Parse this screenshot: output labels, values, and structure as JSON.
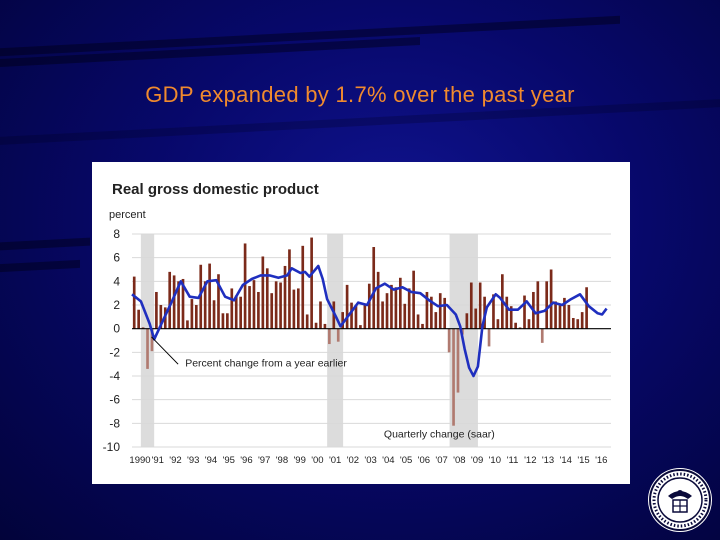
{
  "slide": {
    "title": "GDP expanded by 1.7% over the past year"
  },
  "colors": {
    "bar": "#7b2a1a",
    "bar_negative": "#b07a70",
    "line": "#1f2fbf",
    "recession": "#dcdcdc",
    "title": "#f08a2e"
  },
  "seal": {
    "icon": "federal-reserve-seal-icon"
  },
  "chart_data": {
    "type": "bar",
    "title": "Real gross domestic product",
    "ylabel": "percent",
    "ylim": [
      -10,
      8
    ],
    "yticks": [
      8,
      6,
      4,
      2,
      0,
      -2,
      -4,
      -6,
      -8,
      -10
    ],
    "xlim": [
      1990,
      2017
    ],
    "xtick_labels": [
      "1990",
      "'91",
      "'92",
      "'93",
      "'94",
      "'95",
      "'96",
      "'97",
      "'98",
      "'99",
      "'00",
      "'01",
      "'02",
      "'03",
      "'04",
      "'05",
      "'06",
      "'07",
      "'08",
      "'09",
      "'10",
      "'11",
      "'12",
      "'13",
      "'14",
      "'15",
      "'16"
    ],
    "annotations": {
      "line_label": "Percent change from a year earlier",
      "bar_label": "Quarterly change (saar)"
    },
    "recessions": [
      [
        1990.5,
        1991.25
      ],
      [
        2001.0,
        2001.9
      ],
      [
        2007.9,
        2009.5
      ]
    ],
    "series": [
      {
        "name": "Quarterly change (saar)",
        "type": "bar",
        "start_year": 1990.0,
        "step": 0.25,
        "values": [
          4.4,
          1.6,
          0.1,
          -3.4,
          -1.9,
          3.1,
          2.0,
          1.8,
          4.8,
          4.5,
          4.0,
          4.2,
          0.7,
          2.5,
          2.0,
          5.4,
          4.0,
          5.5,
          2.4,
          4.6,
          1.3,
          1.3,
          3.4,
          2.8,
          2.7,
          7.2,
          3.6,
          4.1,
          3.1,
          6.1,
          5.1,
          3.0,
          4.0,
          3.9,
          5.3,
          6.7,
          3.3,
          3.4,
          7.0,
          1.2,
          7.7,
          0.5,
          2.3,
          0.4,
          -1.3,
          2.3,
          -1.1,
          1.4,
          3.7,
          2.2,
          2.0,
          0.3,
          2.1,
          3.8,
          6.9,
          4.8,
          2.3,
          3.0,
          3.7,
          3.5,
          4.3,
          2.1,
          3.4,
          4.9,
          1.2,
          0.4,
          3.1,
          2.7,
          1.4,
          3.0,
          2.6,
          -2.0,
          -8.2,
          -5.4,
          -0.5,
          1.3,
          3.9,
          1.7,
          3.9,
          2.7,
          -1.5,
          2.9,
          0.8,
          4.6,
          2.7,
          1.9,
          0.5,
          0.1,
          2.8,
          0.8,
          3.1,
          4.0,
          -1.2,
          4.0,
          5.0,
          2.3,
          2.0,
          2.6,
          2.0,
          0.9,
          0.8,
          1.4,
          3.5
        ]
      },
      {
        "name": "Percent change from a year earlier",
        "type": "line",
        "points": [
          [
            1990.0,
            2.9
          ],
          [
            1990.5,
            2.3
          ],
          [
            1991.0,
            0.4
          ],
          [
            1991.25,
            -0.9
          ],
          [
            1991.75,
            0.7
          ],
          [
            1992.25,
            2.3
          ],
          [
            1992.75,
            4.0
          ],
          [
            1993.25,
            2.7
          ],
          [
            1993.75,
            2.6
          ],
          [
            1994.25,
            4.0
          ],
          [
            1994.75,
            4.1
          ],
          [
            1995.25,
            2.7
          ],
          [
            1995.75,
            2.4
          ],
          [
            1996.25,
            3.7
          ],
          [
            1996.75,
            4.2
          ],
          [
            1997.25,
            4.5
          ],
          [
            1997.75,
            4.5
          ],
          [
            1998.25,
            4.3
          ],
          [
            1998.75,
            4.5
          ],
          [
            1999.0,
            5.1
          ],
          [
            1999.5,
            4.7
          ],
          [
            1999.75,
            4.8
          ],
          [
            2000.0,
            4.4
          ],
          [
            2000.5,
            5.3
          ],
          [
            2000.75,
            4.2
          ],
          [
            2001.0,
            2.5
          ],
          [
            2001.5,
            1.0
          ],
          [
            2001.75,
            0.2
          ],
          [
            2002.25,
            1.2
          ],
          [
            2002.75,
            2.2
          ],
          [
            2003.25,
            2.0
          ],
          [
            2003.75,
            3.4
          ],
          [
            2004.25,
            3.8
          ],
          [
            2004.75,
            3.3
          ],
          [
            2005.25,
            3.5
          ],
          [
            2005.75,
            3.1
          ],
          [
            2006.25,
            3.0
          ],
          [
            2006.75,
            2.4
          ],
          [
            2007.25,
            1.9
          ],
          [
            2007.75,
            2.0
          ],
          [
            2008.25,
            1.2
          ],
          [
            2008.5,
            0.2
          ],
          [
            2008.75,
            -1.7
          ],
          [
            2009.0,
            -3.3
          ],
          [
            2009.25,
            -4.0
          ],
          [
            2009.5,
            -3.2
          ],
          [
            2009.75,
            0.2
          ],
          [
            2010.0,
            1.8
          ],
          [
            2010.5,
            2.9
          ],
          [
            2010.75,
            2.6
          ],
          [
            2011.25,
            1.6
          ],
          [
            2011.75,
            1.6
          ],
          [
            2012.25,
            2.3
          ],
          [
            2012.75,
            1.3
          ],
          [
            2013.25,
            1.5
          ],
          [
            2013.75,
            2.2
          ],
          [
            2014.25,
            2.0
          ],
          [
            2014.75,
            2.5
          ],
          [
            2015.25,
            2.9
          ],
          [
            2015.75,
            1.9
          ],
          [
            2016.25,
            1.3
          ],
          [
            2016.5,
            1.2
          ],
          [
            2016.75,
            1.7
          ]
        ]
      }
    ]
  }
}
